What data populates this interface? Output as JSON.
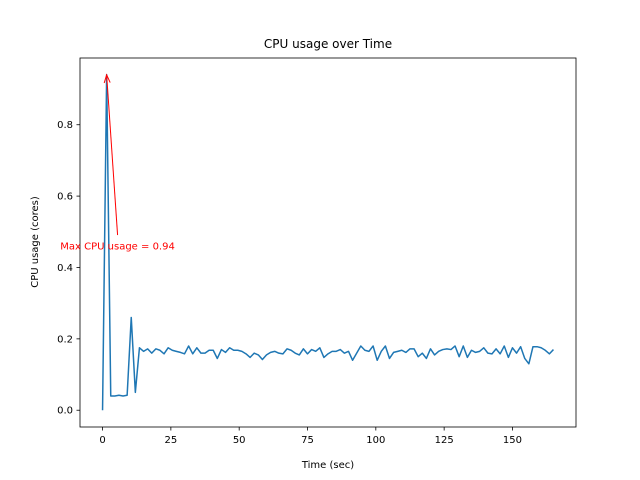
{
  "chart_data": {
    "type": "line",
    "title": "CPU usage over Time",
    "xlabel": "Time (sec)",
    "ylabel": "CPU usage (cores)",
    "x": [
      0,
      1.5,
      3,
      4.5,
      6,
      7.5,
      9,
      10.5,
      12,
      13.5,
      15,
      16.5,
      18,
      19.5,
      21,
      22.5,
      24,
      25.5,
      27,
      28.5,
      30,
      31.5,
      33,
      34.5,
      36,
      37.5,
      39,
      40.5,
      42,
      43.5,
      45,
      46.5,
      48,
      49.5,
      51,
      52.5,
      54,
      55.5,
      57,
      58.5,
      60,
      61.5,
      63,
      64.5,
      66,
      67.5,
      69,
      70.5,
      72,
      73.5,
      75,
      76.5,
      78,
      79.5,
      81,
      82.5,
      84,
      85.5,
      87,
      88.5,
      90,
      91.5,
      93,
      94.5,
      96,
      97.5,
      99,
      100.5,
      102,
      103.5,
      105,
      106.5,
      108,
      109.5,
      111,
      112.5,
      114,
      115.5,
      117,
      118.5,
      120,
      121.5,
      123,
      124.5,
      126,
      127.5,
      129,
      130.5,
      132,
      133.5,
      135,
      136.5,
      138,
      139.5,
      141,
      142.5,
      144,
      145.5,
      147,
      148.5,
      150,
      151.5,
      153,
      154.5,
      156,
      157.5,
      159,
      160.5,
      162,
      163.5,
      165
    ],
    "series": [
      {
        "name": "CPU usage",
        "color": "#1f77b4",
        "values": [
          0,
          0.94,
          0.04,
          0.04,
          0.042,
          0.04,
          0.042,
          0.26,
          0.05,
          0.175,
          0.165,
          0.172,
          0.16,
          0.172,
          0.168,
          0.158,
          0.175,
          0.168,
          0.165,
          0.162,
          0.158,
          0.18,
          0.158,
          0.175,
          0.16,
          0.16,
          0.168,
          0.168,
          0.145,
          0.17,
          0.162,
          0.175,
          0.168,
          0.168,
          0.165,
          0.158,
          0.148,
          0.16,
          0.155,
          0.142,
          0.155,
          0.162,
          0.165,
          0.16,
          0.158,
          0.172,
          0.168,
          0.16,
          0.155,
          0.172,
          0.158,
          0.17,
          0.165,
          0.175,
          0.148,
          0.158,
          0.165,
          0.165,
          0.17,
          0.16,
          0.165,
          0.14,
          0.16,
          0.18,
          0.168,
          0.165,
          0.18,
          0.14,
          0.165,
          0.18,
          0.145,
          0.162,
          0.165,
          0.168,
          0.162,
          0.172,
          0.172,
          0.15,
          0.16,
          0.145,
          0.172,
          0.155,
          0.165,
          0.17,
          0.172,
          0.17,
          0.18,
          0.15,
          0.18,
          0.148,
          0.168,
          0.162,
          0.165,
          0.175,
          0.16,
          0.158,
          0.172,
          0.158,
          0.18,
          0.148,
          0.175,
          0.16,
          0.178,
          0.145,
          0.13,
          0.178,
          0.178,
          0.175,
          0.168,
          0.158,
          0.17
        ]
      }
    ],
    "xlim": [
      -8.25,
      173.25
    ],
    "ylim": [
      -0.047,
      0.987
    ],
    "xticks": [
      0,
      25,
      50,
      75,
      100,
      125,
      150
    ],
    "yticks": [
      {
        "value": 0,
        "label": "0.0"
      },
      0.2,
      0.4,
      0.6,
      0.8
    ],
    "grid": false,
    "annotation": {
      "text": "Max CPU usage = 0.94",
      "xy": [
        1.5,
        0.94
      ],
      "xytext": [
        5.5,
        0.46
      ],
      "color": "#ff0000"
    }
  }
}
